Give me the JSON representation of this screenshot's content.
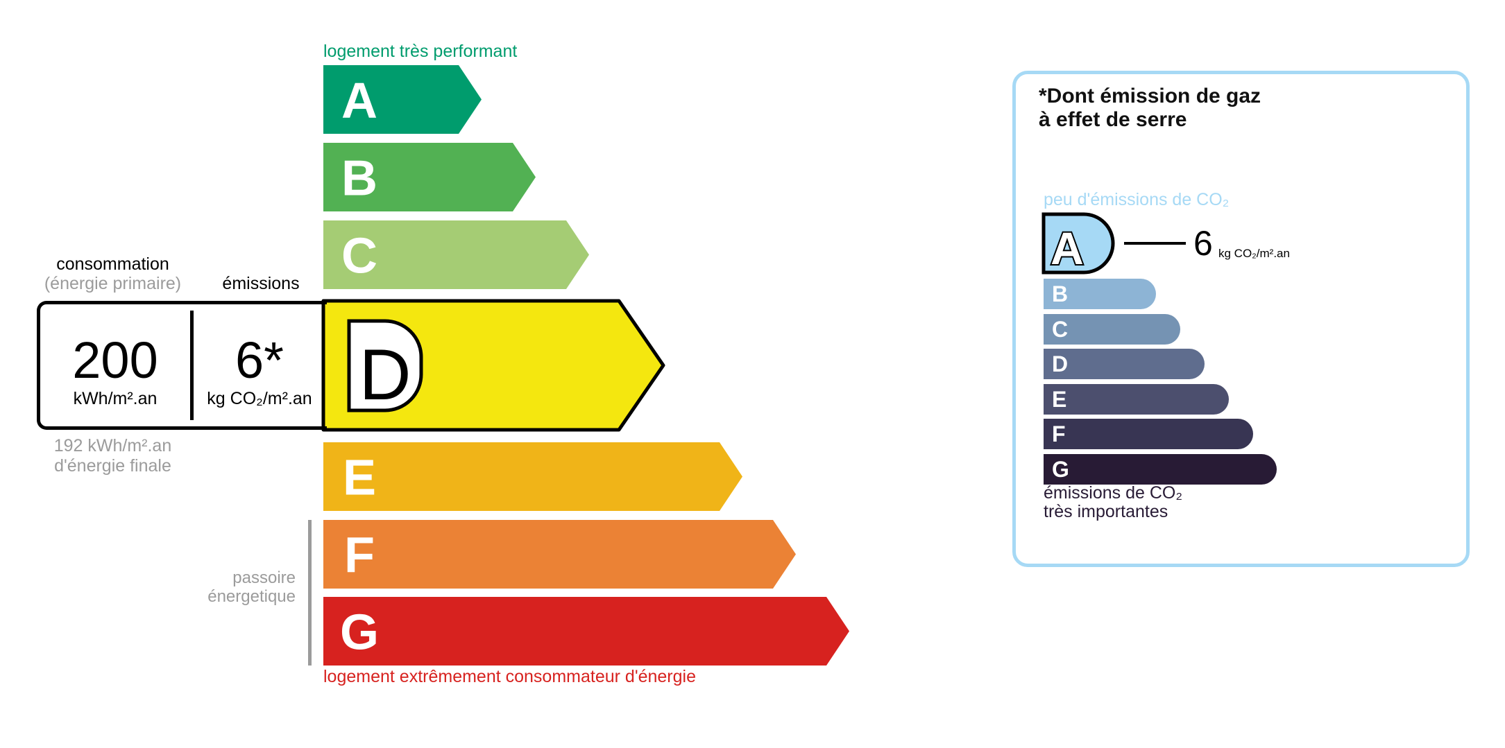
{
  "energy": {
    "top_label": "logement très performant",
    "bottom_label": "logement extrêmement consommateur d'énergie",
    "passoire_label_line1": "passoire",
    "passoire_label_line2": "énergetique",
    "active_class": "D",
    "classes": [
      {
        "letter": "A",
        "color": "#009c6d"
      },
      {
        "letter": "B",
        "color": "#52b153"
      },
      {
        "letter": "C",
        "color": "#a5cc74"
      },
      {
        "letter": "D",
        "color": "#f4e70f"
      },
      {
        "letter": "E",
        "color": "#f0b418"
      },
      {
        "letter": "F",
        "color": "#eb8235"
      },
      {
        "letter": "G",
        "color": "#d7221f"
      }
    ],
    "top_label_color": "#009c6d",
    "bottom_label_color": "#d7221f"
  },
  "values": {
    "consumption_title": "consommation",
    "consumption_subtitle": "(énergie primaire)",
    "emissions_title": "émissions",
    "consumption_value": "200",
    "consumption_unit": "kWh/m².an",
    "emissions_value": "6*",
    "emissions_unit": "kg CO₂/m².an",
    "final_energy_value": "192 kWh/m².an",
    "final_energy_label": "d'énergie finale"
  },
  "ges": {
    "title_line1": "*Dont émission de gaz",
    "title_line2": "à effet de serre",
    "top_label": "peu d'émissions de CO₂",
    "bottom_label_line1": "émissions de CO₂",
    "bottom_label_line2": "très importantes",
    "active_class": "A",
    "value": "6",
    "unit": "kg CO₂/m².an",
    "border_color": "#a6d9f5",
    "classes": [
      {
        "letter": "A",
        "color": "#a6d9f5"
      },
      {
        "letter": "B",
        "color": "#8db4d5"
      },
      {
        "letter": "C",
        "color": "#7593b3"
      },
      {
        "letter": "D",
        "color": "#5f6d8e"
      },
      {
        "letter": "E",
        "color": "#4c4f6e"
      },
      {
        "letter": "F",
        "color": "#383553"
      },
      {
        "letter": "G",
        "color": "#281b35"
      }
    ]
  }
}
